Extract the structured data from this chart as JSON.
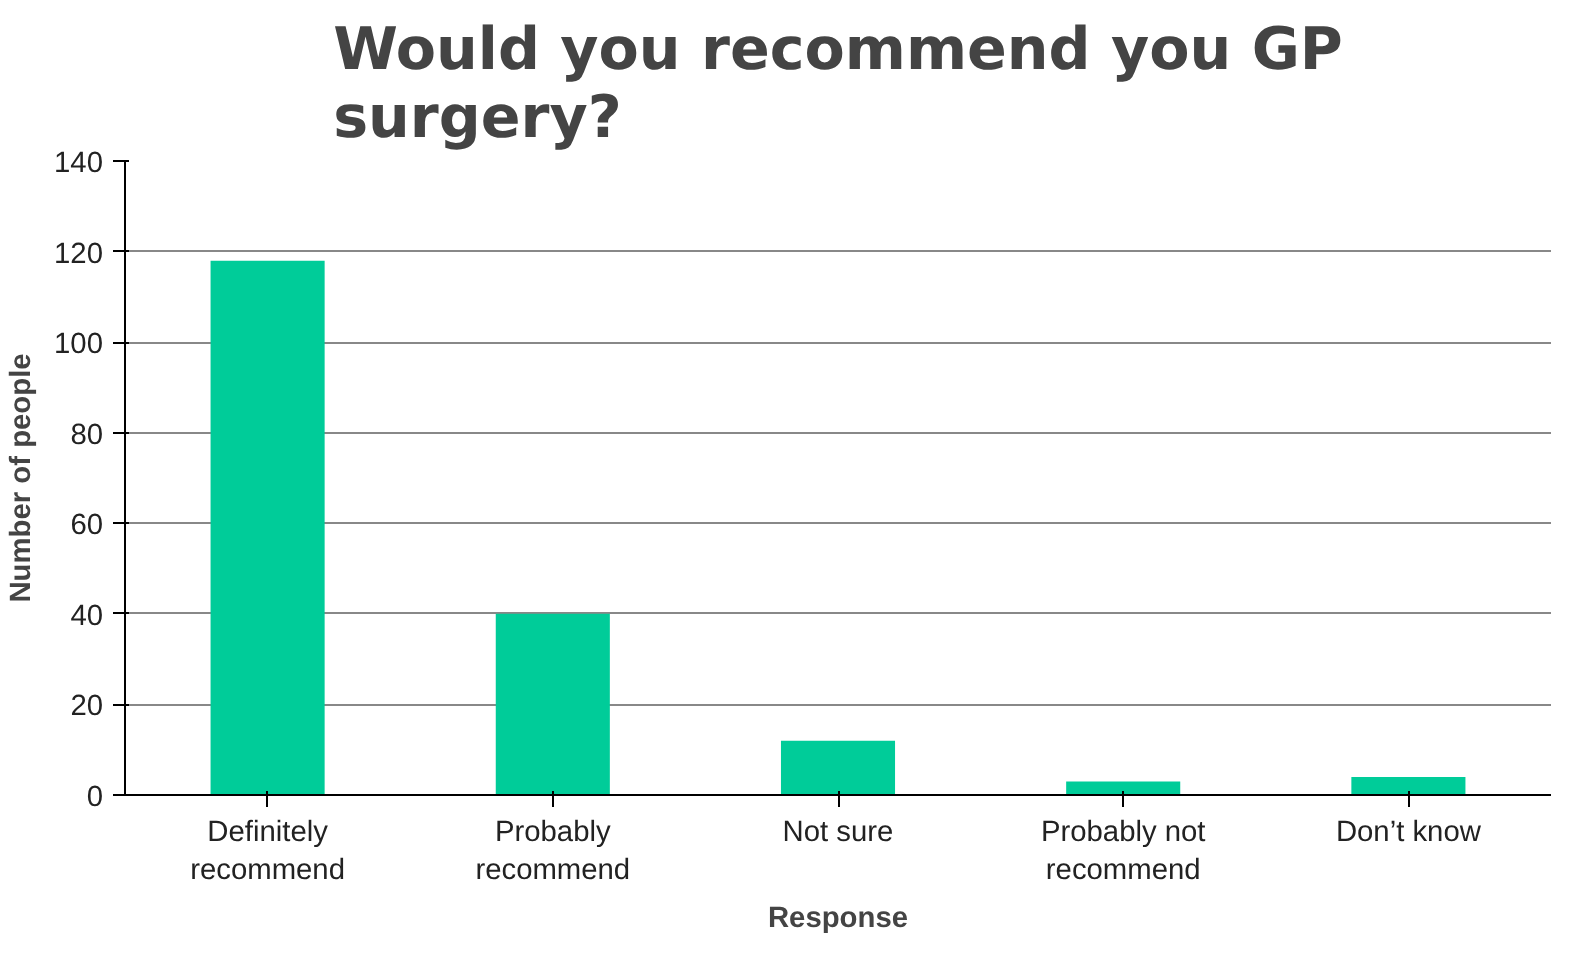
{
  "chart_data": {
    "type": "bar",
    "title": "Would you recommend you GP surgery?",
    "xlabel": "Response",
    "ylabel": "Number of people",
    "categories": [
      "Definitely recommend",
      "Probably recommend",
      "Not sure",
      "Probably not recommend",
      "Don’t know"
    ],
    "values": [
      118,
      40,
      12,
      3,
      4
    ],
    "color": "#00cc99",
    "ylim": [
      0,
      140
    ],
    "yticks": [
      0,
      20,
      40,
      60,
      80,
      100,
      120,
      140
    ],
    "grid": "y"
  }
}
